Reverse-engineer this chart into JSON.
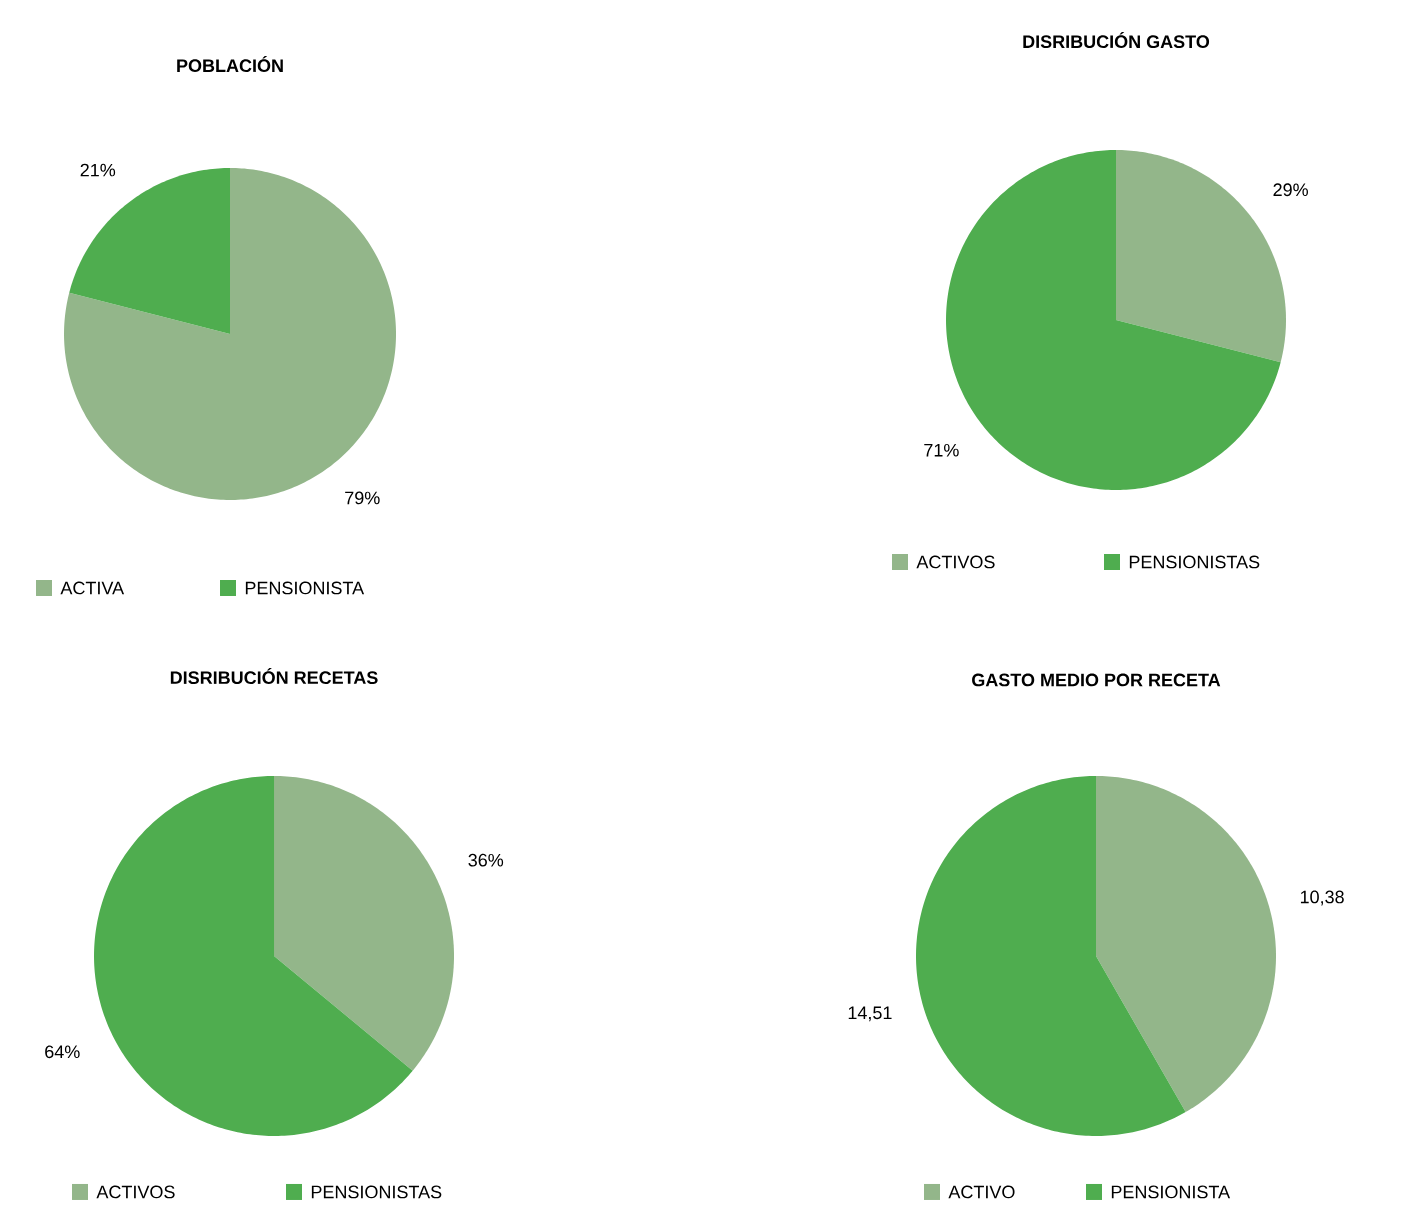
{
  "chart_data": [
    {
      "type": "pie",
      "title": "POBLACIÓN",
      "categories": [
        "ACTIVA",
        "PENSIONISTA"
      ],
      "values": [
        79,
        21
      ],
      "colors": [
        "#93b68a",
        "#4fad4f"
      ],
      "value_labels": [
        "79%",
        "21%"
      ],
      "legend": "bottom"
    },
    {
      "type": "pie",
      "title": "DISRIBUCIÓN GASTO",
      "categories": [
        "ACTIVOS",
        "PENSIONISTAS"
      ],
      "values": [
        29,
        71
      ],
      "colors": [
        "#93b68a",
        "#4fad4f"
      ],
      "value_labels": [
        "29%",
        "71%"
      ],
      "legend": "bottom"
    },
    {
      "type": "pie",
      "title": "DISRIBUCIÓN RECETAS",
      "categories": [
        "ACTIVOS",
        "PENSIONISTAS"
      ],
      "values": [
        36,
        64
      ],
      "colors": [
        "#93b68a",
        "#4fad4f"
      ],
      "value_labels": [
        "36%",
        "64%"
      ],
      "legend": "bottom"
    },
    {
      "type": "pie",
      "title": "GASTO MEDIO POR RECETA",
      "categories": [
        "ACTIVO",
        "PENSIONISTA"
      ],
      "values": [
        10.38,
        14.51
      ],
      "colors": [
        "#93b68a",
        "#4fad4f"
      ],
      "value_labels": [
        "10,38",
        "14,51"
      ],
      "legend": "bottom"
    }
  ]
}
